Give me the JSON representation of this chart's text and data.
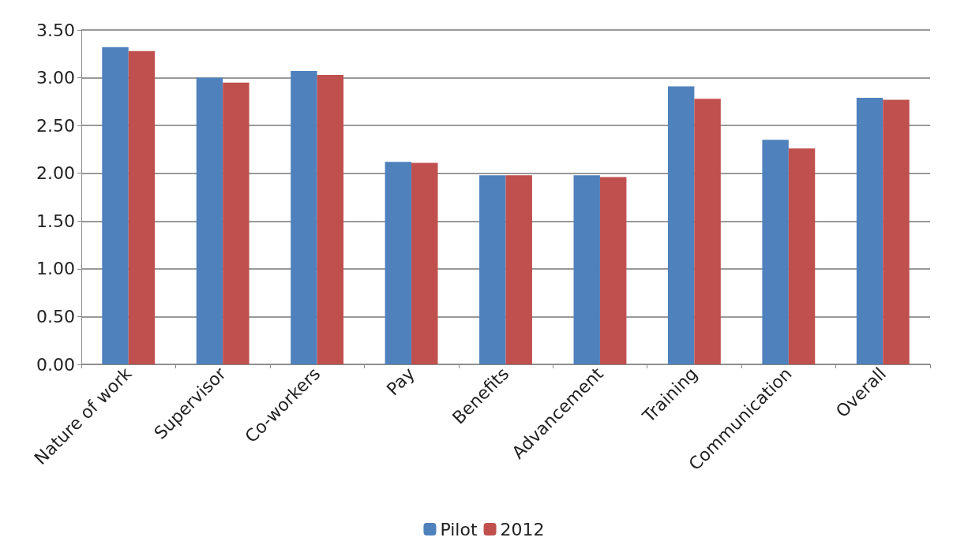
{
  "chart_data": {
    "type": "bar",
    "categories": [
      "Nature of work",
      "Supervisor",
      "Co-workers",
      "Pay",
      "Benefits",
      "Advancement",
      "Training",
      "Communication",
      "Overall"
    ],
    "series": [
      {
        "name": "Pilot",
        "color": "#4f81bd",
        "values": [
          3.32,
          3.0,
          3.07,
          2.12,
          1.98,
          1.98,
          2.91,
          2.35,
          2.79
        ]
      },
      {
        "name": "2012",
        "color": "#c0504d",
        "values": [
          3.28,
          2.95,
          3.03,
          2.11,
          1.98,
          1.96,
          2.78,
          2.26,
          2.77
        ]
      }
    ],
    "ylim": [
      0,
      3.5
    ],
    "yticks": [
      {
        "value": 0,
        "label": "0.00"
      },
      {
        "value": 0.5,
        "label": "0.50"
      },
      {
        "value": 1,
        "label": "1.00"
      },
      {
        "value": 1.5,
        "label": "1.50"
      },
      {
        "value": 2,
        "label": "2.00"
      },
      {
        "value": 2.5,
        "label": "2.50"
      },
      {
        "value": 3,
        "label": "3.00"
      },
      {
        "value": 3.5,
        "label": "3.50"
      }
    ],
    "grid": "y",
    "legend": "bottom"
  }
}
